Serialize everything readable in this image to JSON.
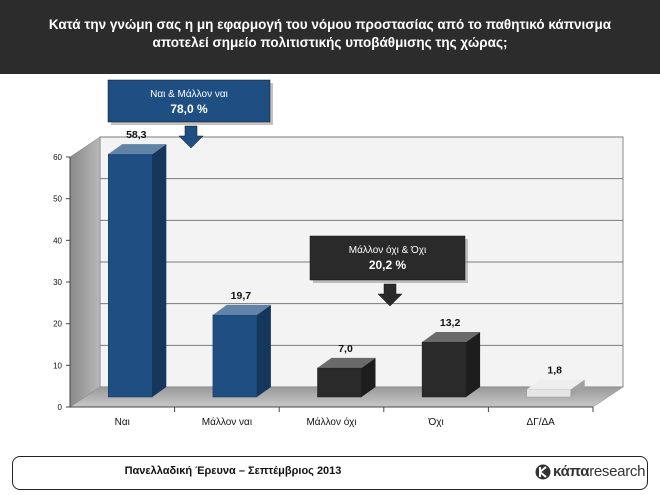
{
  "title": "Κατά την γνώμη σας η μη εφαρμογή του νόμου προστασίας από το παθητικό κάπνισμα αποτελεί σημείο πολιτιστικής υποβάθμισης της χώρας;",
  "chart_data": {
    "type": "bar",
    "categories": [
      "Ναι",
      "Μάλλον ναι",
      "Μάλλον όχι",
      "Όχι",
      "ΔΓ/ΔΑ"
    ],
    "values": [
      58.3,
      19.7,
      7.0,
      13.2,
      1.8
    ],
    "value_labels": [
      "58,3",
      "19,7",
      "7,0",
      "13,2",
      "1,8"
    ],
    "bar_colors": [
      "#1e4e82",
      "#1e4e82",
      "#2a2a2a",
      "#2a2a2a",
      "#e6e6e6"
    ],
    "ylim": [
      0,
      60
    ],
    "yticks": [
      0,
      10,
      20,
      30,
      40,
      50,
      60
    ],
    "grid": true,
    "annotations": [
      {
        "line1": "Ναι & Μάλλον ναι",
        "line2": "78,0 %",
        "color": "#1e4e82"
      },
      {
        "line1": "Μάλλον όχι & Όχι",
        "line2": "20,2 %",
        "color": "#2a2a2a"
      }
    ]
  },
  "footer": {
    "survey": "Πανελλαδική Έρευνα – Σεπτέμβριος 2013",
    "brand_a": "κάπα",
    "brand_b": "research"
  }
}
